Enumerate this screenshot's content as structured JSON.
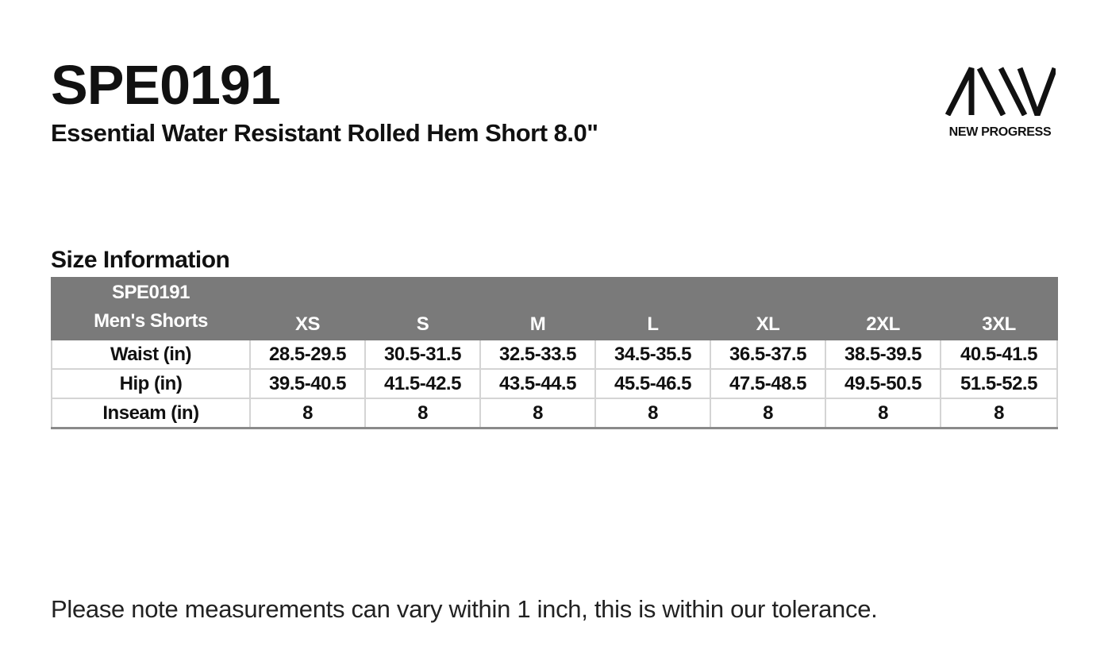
{
  "header": {
    "product_code": "SPE0191",
    "product_name": "Essential Water Resistant Rolled Hem Short 8.0\""
  },
  "brand": {
    "logo_icon": "aiiv-logo-icon",
    "tagline": "NEW PROGRESS"
  },
  "size_section": {
    "title": "Size Information",
    "corner_line1": "SPE0191",
    "corner_line2": "Men's Shorts",
    "sizes": [
      "XS",
      "S",
      "M",
      "L",
      "XL",
      "2XL",
      "3XL"
    ],
    "rows": [
      {
        "label": "Waist (in)",
        "values": [
          "28.5-29.5",
          "30.5-31.5",
          "32.5-33.5",
          "34.5-35.5",
          "36.5-37.5",
          "38.5-39.5",
          "40.5-41.5"
        ]
      },
      {
        "label": "Hip (in)",
        "values": [
          "39.5-40.5",
          "41.5-42.5",
          "43.5-44.5",
          "45.5-46.5",
          "47.5-48.5",
          "49.5-50.5",
          "51.5-52.5"
        ]
      },
      {
        "label": "Inseam (in)",
        "values": [
          "8",
          "8",
          "8",
          "8",
          "8",
          "8",
          "8"
        ]
      }
    ]
  },
  "footer": {
    "note": "Please note measurements can vary within 1 inch, this is within our tolerance."
  },
  "colors": {
    "header_fill": "#7a7a7a",
    "text": "#111111",
    "grid": "#d4d4d4"
  }
}
